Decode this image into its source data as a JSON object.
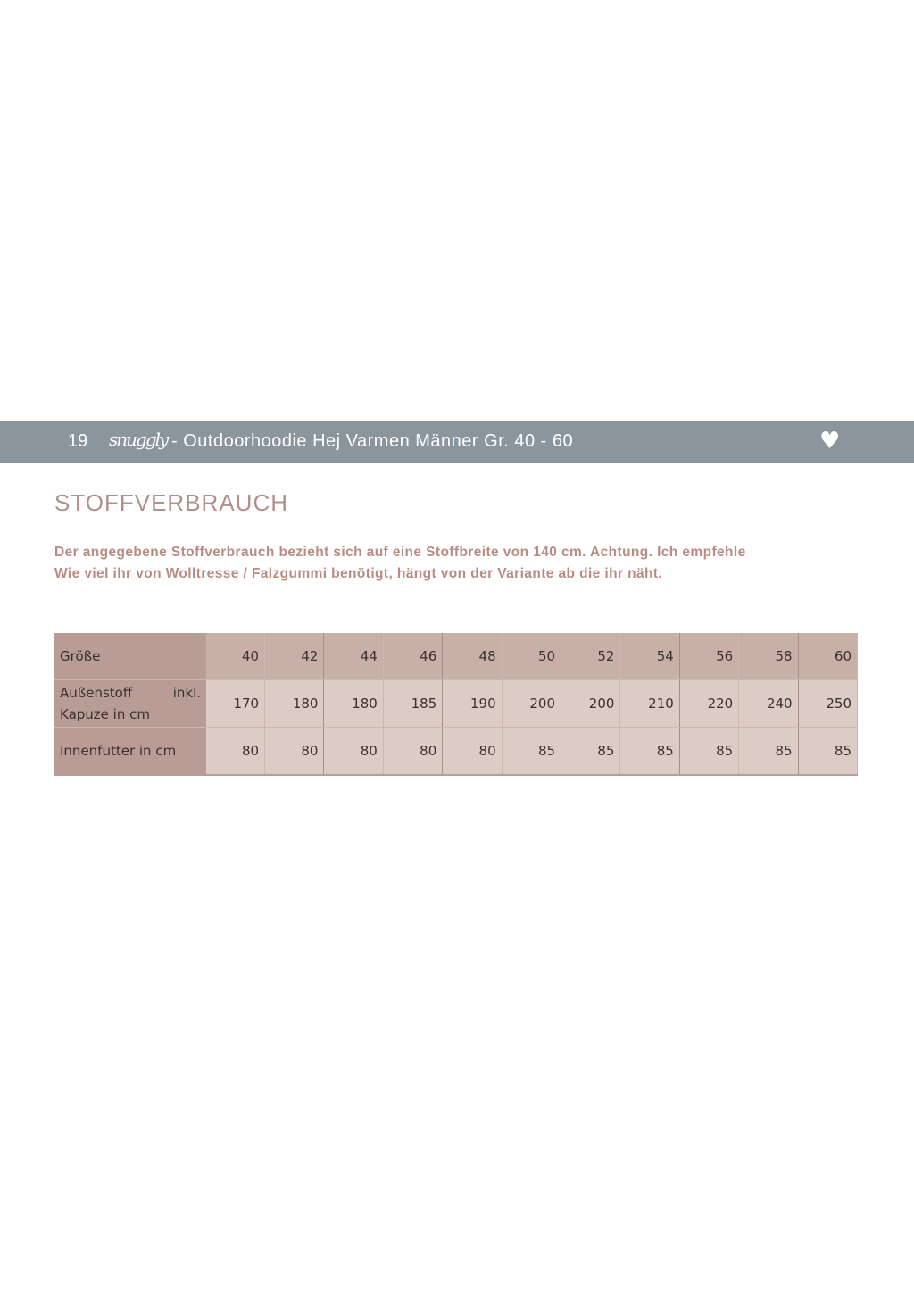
{
  "header": {
    "page_number": "19",
    "logo_text": "snuggly",
    "title": "- Outdoorhoodie Hej Varmen Männer Gr. 40 - 60",
    "icon": "heart-icon"
  },
  "section": {
    "title": "STOFFVERBRAUCH",
    "intro_line1": "Der angegebene Stoffverbrauch bezieht sich auf eine Stoffbreite von 140 cm. Achtung. Ich empfehle",
    "intro_line2": "Wie viel ihr von Wolltresse / Falzgummi benötigt, hängt von der Variante ab die ihr näht."
  },
  "table": {
    "size_label": "Größe",
    "sizes": [
      "40",
      "42",
      "44",
      "46",
      "48",
      "50",
      "52",
      "54",
      "56",
      "58",
      "60"
    ],
    "rows": [
      {
        "label_a": "Außenstoff",
        "label_b": "inkl.",
        "label_c": "Kapuze in cm",
        "values": [
          "170",
          "180",
          "180",
          "185",
          "190",
          "200",
          "200",
          "210",
          "220",
          "240",
          "250"
        ]
      },
      {
        "label": "Innenfutter in cm",
        "values": [
          "80",
          "80",
          "80",
          "80",
          "80",
          "85",
          "85",
          "85",
          "85",
          "85",
          "85"
        ]
      }
    ]
  },
  "colors": {
    "header_bar": "#8b959e",
    "accent": "#b09089",
    "label_cell": "#b89c95",
    "value_cell": "#ddcbc5"
  }
}
